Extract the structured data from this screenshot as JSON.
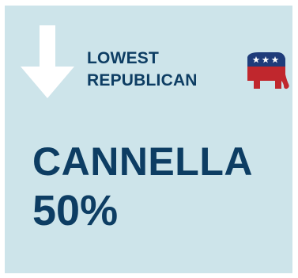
{
  "card": {
    "heading_line1": "LOWEST",
    "heading_line2": "REPUBLICAN",
    "candidate_name": "CANNELLA",
    "percentage": "50%",
    "arrow_icon": "down-arrow-icon",
    "party_icon": "republican-elephant-icon"
  },
  "colors": {
    "background": "#cde4ea",
    "text": "#0d3d63",
    "arrow": "#ffffff",
    "elephant_red": "#c0272d",
    "elephant_blue": "#1f3c7a"
  }
}
